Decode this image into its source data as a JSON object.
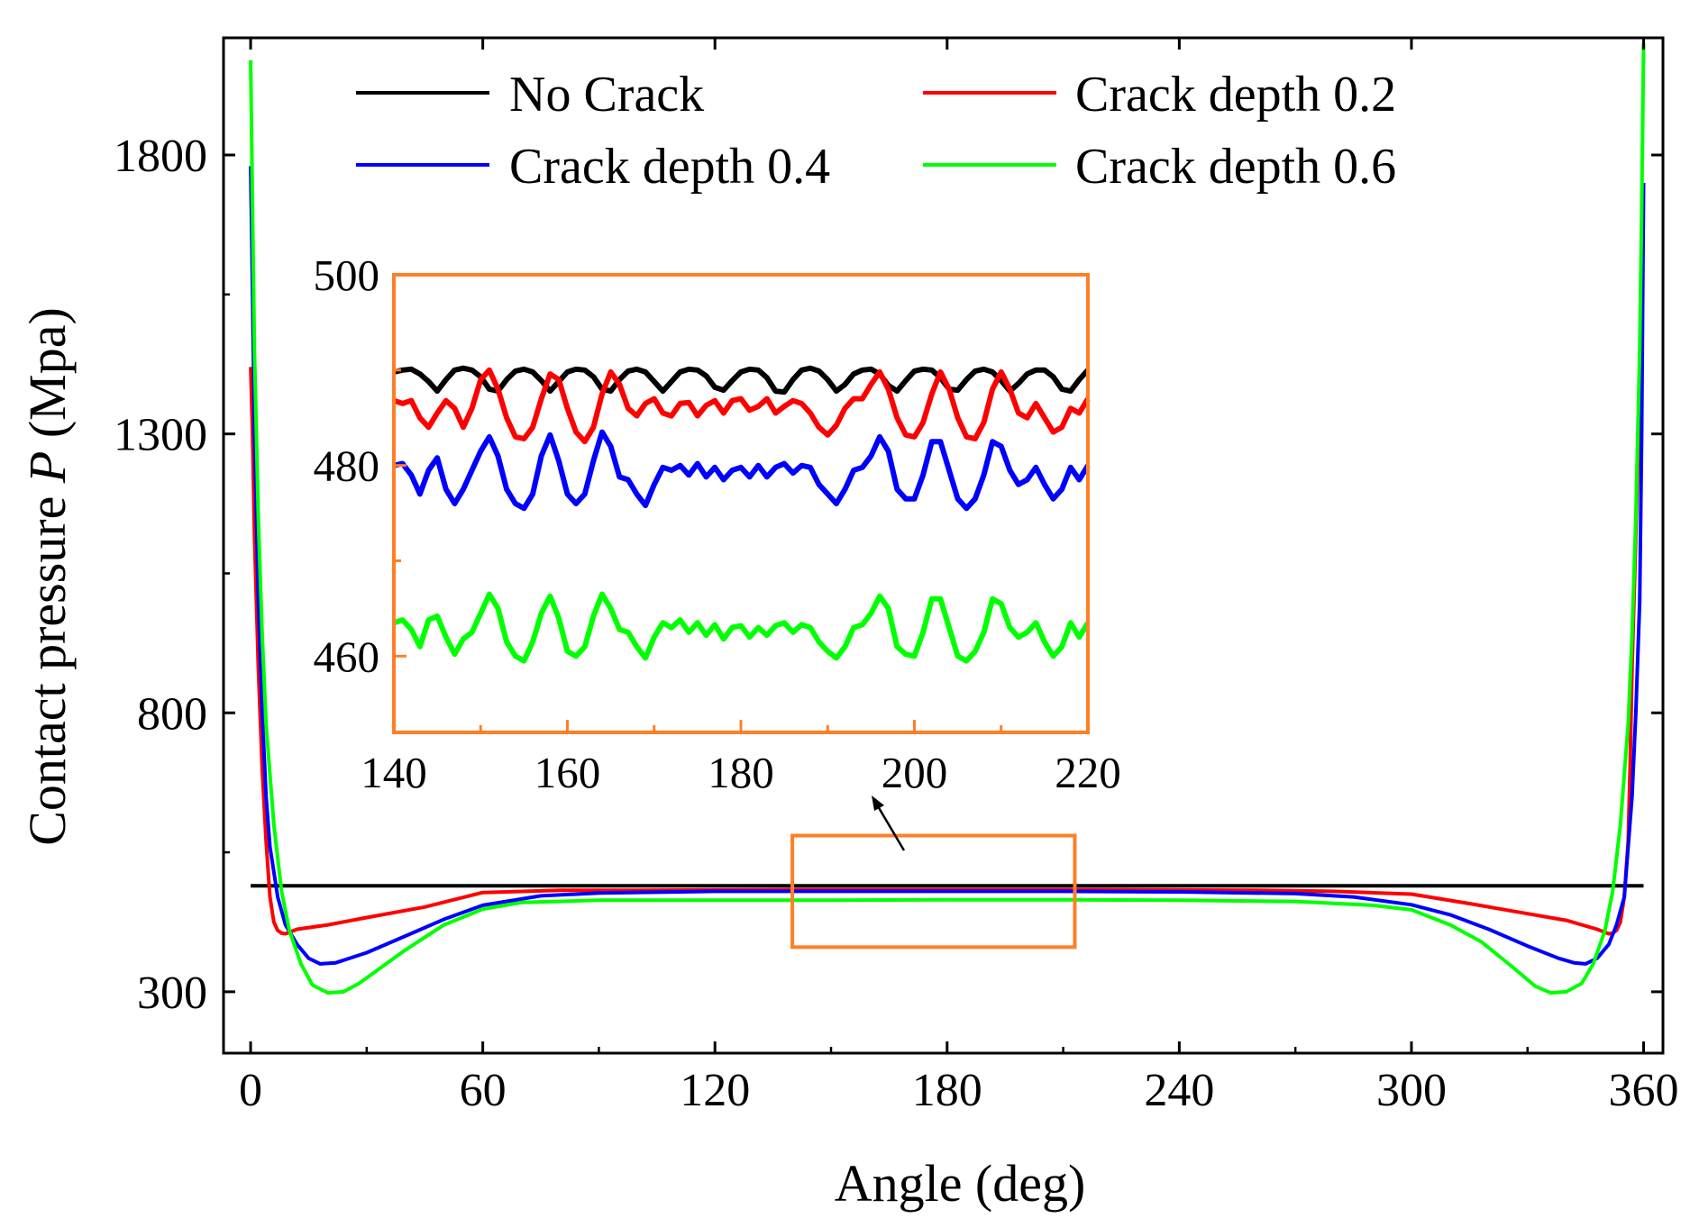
{
  "chart_data": {
    "type": "line",
    "xlabel": "Angle (deg)",
    "ylabel_prefix": "Contact pressure ",
    "ylabel_var": "P",
    "ylabel_suffix": " (Mpa)",
    "xlim": [
      -7,
      365
    ],
    "ylim": [
      190,
      2010
    ],
    "xticks": [
      0,
      60,
      120,
      180,
      240,
      300,
      360
    ],
    "yticks": [
      300,
      800,
      1300,
      1800
    ],
    "legend_position": "top",
    "series": [
      {
        "name": "No Crack",
        "color": "#000000",
        "x": [
          0,
          30,
          60,
          90,
          120,
          150,
          180,
          210,
          240,
          270,
          300,
          330,
          360
        ],
        "y": [
          490,
          490,
          490,
          490,
          490,
          490,
          490,
          490,
          490,
          490,
          490,
          490,
          490
        ]
      },
      {
        "name": "Crack depth 0.2",
        "color": "#ff0000",
        "x": [
          0,
          0.5,
          1,
          2,
          3,
          4,
          5,
          6,
          7,
          8,
          9,
          12,
          20,
          30,
          45,
          60,
          80,
          100,
          140,
          180,
          220,
          260,
          280,
          300,
          315,
          330,
          340,
          348,
          351,
          352,
          353,
          354,
          355,
          356,
          356.5,
          357,
          358,
          358.7,
          359.5,
          360
        ],
        "y": [
          1420,
          1300,
          1120,
          880,
          700,
          570,
          470,
          425,
          410,
          405,
          404,
          412,
          420,
          433,
          452,
          478,
          482,
          482,
          483,
          483,
          483,
          482,
          480,
          475,
          458,
          440,
          428,
          412,
          404,
          405,
          410,
          425,
          470,
          570,
          700,
          880,
          1120,
          1300,
          1420,
          1420
        ]
      },
      {
        "name": "Crack depth 0.4",
        "color": "#0000ff",
        "x": [
          0,
          0.5,
          1,
          2,
          3,
          4,
          5,
          7,
          9,
          12,
          15,
          18,
          22,
          30,
          40,
          50,
          60,
          75,
          90,
          120,
          150,
          180,
          210,
          240,
          270,
          285,
          300,
          310,
          320,
          330,
          338,
          342,
          345,
          348,
          351,
          353,
          355,
          356,
          357,
          358,
          359,
          359.5,
          360
        ],
        "y": [
          1780,
          1550,
          1300,
          1000,
          800,
          650,
          560,
          470,
          420,
          385,
          360,
          350,
          352,
          370,
          400,
          430,
          455,
          472,
          477,
          480,
          480,
          480,
          480,
          479,
          476,
          470,
          456,
          438,
          412,
          382,
          360,
          352,
          350,
          360,
          385,
          420,
          470,
          560,
          650,
          800,
          1000,
          1300,
          1750
        ]
      },
      {
        "name": "Crack depth 0.6",
        "color": "#00ff00",
        "x": [
          0,
          0.5,
          1,
          2,
          3,
          4,
          6,
          8,
          10,
          13,
          16,
          20,
          24,
          28,
          32,
          40,
          50,
          60,
          70,
          90,
          120,
          150,
          180,
          210,
          240,
          270,
          290,
          300,
          310,
          318,
          326,
          332,
          336,
          340,
          344,
          347,
          350,
          352,
          354,
          356,
          357,
          358,
          359,
          359.5,
          360
        ],
        "y": [
          1970,
          1700,
          1450,
          1150,
          940,
          780,
          600,
          480,
          410,
          350,
          312,
          298,
          300,
          315,
          335,
          375,
          420,
          448,
          460,
          464,
          464,
          464,
          465,
          465,
          464,
          462,
          455,
          447,
          420,
          390,
          345,
          310,
          298,
          300,
          315,
          350,
          410,
          480,
          600,
          780,
          940,
          1150,
          1450,
          1700,
          2000
        ]
      }
    ],
    "highlight_box": {
      "x": [
        140,
        213
      ],
      "y": [
        380,
        580
      ]
    },
    "inset": {
      "xlim": [
        140,
        220
      ],
      "ylim": [
        452,
        500
      ],
      "xticks": [
        140,
        160,
        180,
        200,
        220
      ],
      "yticks": [
        460,
        480,
        500
      ],
      "minor_yticks": [
        470,
        490
      ],
      "minor_xticks": [
        150,
        170,
        190,
        210
      ],
      "series": [
        {
          "name": "No Crack",
          "color": "#000000",
          "x": [
            140,
            141,
            142,
            143,
            144,
            145,
            146,
            147,
            148,
            149,
            150,
            151,
            152,
            153,
            154,
            155,
            156,
            157,
            158,
            159,
            160,
            161,
            162,
            163,
            164,
            165,
            166,
            167,
            168,
            169,
            170,
            171,
            172,
            173,
            174,
            175,
            176,
            177,
            178,
            179,
            180,
            181,
            182,
            183,
            184,
            185,
            186,
            187,
            188,
            189,
            190,
            191,
            192,
            193,
            194,
            195,
            196,
            197,
            198,
            199,
            200,
            201,
            202,
            203,
            204,
            205,
            206,
            207,
            208,
            209,
            210,
            211,
            212,
            213,
            214,
            215,
            216,
            217,
            218,
            219,
            220
          ],
          "y": [
            489.8,
            490.0,
            490.1,
            489.6,
            488.8,
            487.8,
            489.0,
            490.0,
            490.2,
            490.0,
            489.3,
            488.0,
            487.8,
            489.0,
            489.9,
            490.1,
            489.8,
            488.9,
            487.8,
            488.8,
            489.8,
            490.1,
            490.0,
            489.3,
            488.0,
            487.8,
            489.0,
            489.9,
            490.1,
            489.8,
            488.8,
            487.8,
            488.8,
            489.8,
            490.1,
            490.0,
            489.4,
            488.2,
            487.9,
            488.9,
            489.8,
            490.1,
            490.0,
            489.2,
            487.8,
            487.7,
            489.0,
            490.0,
            490.2,
            489.9,
            489.0,
            487.8,
            488.5,
            489.6,
            490.0,
            490.1,
            489.6,
            488.4,
            487.8,
            488.9,
            489.9,
            490.1,
            490.0,
            489.2,
            488.0,
            487.9,
            489.0,
            489.9,
            490.1,
            489.8,
            488.9,
            487.8,
            488.6,
            489.6,
            490.0,
            490.0,
            489.3,
            488.0,
            487.8,
            489.0,
            490.0
          ]
        },
        {
          "name": "Crack depth 0.2",
          "color": "#ff0000",
          "x": [
            140,
            141,
            142,
            143,
            144,
            145,
            146,
            147,
            148,
            149,
            150,
            151,
            152,
            153,
            154,
            155,
            156,
            157,
            158,
            159,
            160,
            161,
            162,
            163,
            164,
            165,
            166,
            167,
            168,
            169,
            170,
            171,
            172,
            173,
            174,
            175,
            176,
            177,
            178,
            179,
            180,
            181,
            182,
            183,
            184,
            185,
            186,
            187,
            188,
            189,
            190,
            191,
            192,
            193,
            194,
            195,
            196,
            197,
            198,
            199,
            200,
            201,
            202,
            203,
            204,
            205,
            206,
            207,
            208,
            209,
            210,
            211,
            212,
            213,
            214,
            215,
            216,
            217,
            218,
            219,
            220
          ],
          "y": [
            486.8,
            486.5,
            486.8,
            485.0,
            484.0,
            485.5,
            486.8,
            486.0,
            484.0,
            486.0,
            489.0,
            490.0,
            488.0,
            485.0,
            483.0,
            482.8,
            484.0,
            487.0,
            489.6,
            489.0,
            486.0,
            483.5,
            482.5,
            484.0,
            487.5,
            489.8,
            488.5,
            486.0,
            485.2,
            486.5,
            487.0,
            485.5,
            485.2,
            486.5,
            486.6,
            485.2,
            486.3,
            486.8,
            485.5,
            486.8,
            487.0,
            485.8,
            486.2,
            487.0,
            485.5,
            486.2,
            486.8,
            486.5,
            485.5,
            484.0,
            483.2,
            484.2,
            486.0,
            487.0,
            487.0,
            488.5,
            489.8,
            488.0,
            485.0,
            483.2,
            483.0,
            484.5,
            487.5,
            489.8,
            488.0,
            485.0,
            483.0,
            482.8,
            484.5,
            488.0,
            489.8,
            488.0,
            485.5,
            485.0,
            486.5,
            485.0,
            483.5,
            484.0,
            486.0,
            485.5,
            487.0
          ]
        },
        {
          "name": "Crack depth 0.4",
          "color": "#0000ff",
          "x": [
            140,
            141,
            142,
            143,
            144,
            145,
            146,
            147,
            148,
            149,
            150,
            151,
            152,
            153,
            154,
            155,
            156,
            157,
            158,
            159,
            160,
            161,
            162,
            163,
            164,
            165,
            166,
            167,
            168,
            169,
            170,
            171,
            172,
            173,
            174,
            175,
            176,
            177,
            178,
            179,
            180,
            181,
            182,
            183,
            184,
            185,
            186,
            187,
            188,
            189,
            190,
            191,
            192,
            193,
            194,
            195,
            196,
            197,
            198,
            199,
            200,
            201,
            202,
            203,
            204,
            205,
            206,
            207,
            208,
            209,
            210,
            211,
            212,
            213,
            214,
            215,
            216,
            217,
            218,
            219,
            220
          ],
          "y": [
            480.0,
            480.2,
            479.0,
            477.0,
            479.5,
            480.8,
            477.5,
            476.0,
            477.5,
            479.5,
            481.5,
            483.0,
            481.0,
            477.5,
            476.0,
            475.5,
            477.0,
            481.0,
            483.2,
            480.5,
            477.0,
            476.0,
            477.0,
            480.5,
            483.5,
            482.0,
            478.8,
            478.5,
            477.0,
            475.8,
            478.0,
            479.8,
            479.5,
            480.0,
            479.0,
            480.2,
            478.8,
            479.8,
            478.5,
            479.5,
            479.8,
            478.8,
            480.0,
            478.8,
            479.8,
            480.2,
            479.2,
            480.0,
            479.8,
            478.0,
            477.0,
            476.0,
            477.5,
            479.5,
            479.8,
            481.0,
            483.0,
            481.5,
            477.5,
            476.5,
            476.5,
            479.0,
            482.5,
            482.5,
            479.5,
            476.5,
            475.5,
            476.5,
            479.0,
            482.5,
            482.0,
            479.5,
            478.0,
            478.5,
            479.8,
            478.0,
            476.5,
            477.5,
            479.8,
            478.5,
            480.0
          ]
        },
        {
          "name": "Crack depth 0.6",
          "color": "#00ff00",
          "x": [
            140,
            141,
            142,
            143,
            144,
            145,
            146,
            147,
            148,
            149,
            150,
            151,
            152,
            153,
            154,
            155,
            156,
            157,
            158,
            159,
            160,
            161,
            162,
            163,
            164,
            165,
            166,
            167,
            168,
            169,
            170,
            171,
            172,
            173,
            174,
            175,
            176,
            177,
            178,
            179,
            180,
            181,
            182,
            183,
            184,
            185,
            186,
            187,
            188,
            189,
            190,
            191,
            192,
            193,
            194,
            195,
            196,
            197,
            198,
            199,
            200,
            201,
            202,
            203,
            204,
            205,
            206,
            207,
            208,
            209,
            210,
            211,
            212,
            213,
            214,
            215,
            216,
            217,
            218,
            219,
            220
          ],
          "y": [
            463.5,
            463.8,
            462.8,
            461.0,
            463.8,
            464.2,
            462.0,
            460.2,
            461.8,
            462.5,
            464.5,
            466.5,
            465.0,
            461.5,
            460.0,
            459.5,
            461.5,
            464.5,
            466.3,
            464.0,
            460.5,
            460.0,
            461.0,
            464.2,
            466.5,
            465.0,
            462.8,
            462.5,
            461.0,
            459.8,
            462.0,
            463.5,
            463.0,
            463.8,
            462.5,
            463.5,
            462.2,
            463.3,
            461.8,
            463.0,
            463.2,
            462.0,
            463.0,
            462.2,
            463.2,
            463.5,
            462.5,
            463.3,
            463.0,
            461.5,
            460.5,
            459.8,
            461.0,
            463.0,
            463.3,
            464.5,
            466.3,
            465.0,
            461.0,
            460.2,
            460.0,
            462.5,
            466.0,
            466.0,
            463.0,
            460.0,
            459.5,
            460.5,
            462.5,
            466.0,
            465.5,
            463.0,
            462.0,
            462.5,
            463.5,
            461.5,
            460.0,
            461.0,
            463.5,
            462.0,
            463.5
          ]
        }
      ]
    }
  }
}
